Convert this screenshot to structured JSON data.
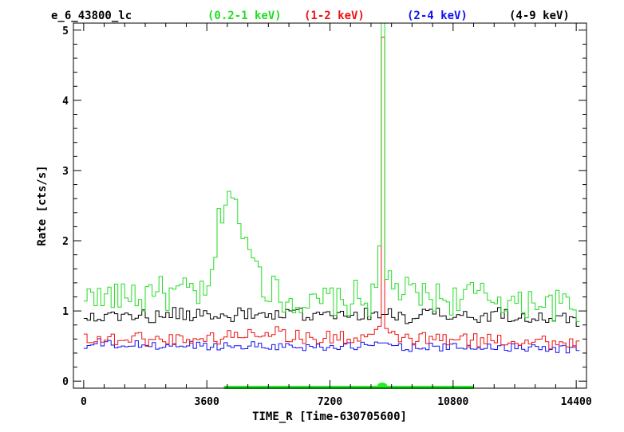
{
  "header": {
    "source": "e_6_43800_lc",
    "bands": [
      {
        "label": "(0.2-1 keV)",
        "color": "#22dd22"
      },
      {
        "label": "(1-2 keV)",
        "color": "#ee1111"
      },
      {
        "label": "(2-4 keV)",
        "color": "#1111ee"
      },
      {
        "label": "(4-9 keV)",
        "color": "#000000"
      }
    ]
  },
  "chart_data": {
    "type": "line",
    "step": true,
    "xlabel": "TIME_R  [Time-630705600]",
    "ylabel": "Rate  [cts/s]",
    "xlim": [
      -300,
      14700
    ],
    "ylim": [
      -0.1,
      5.1
    ],
    "xticks": [
      0,
      3600,
      7200,
      10800,
      14400
    ],
    "xtick_labels": [
      "0",
      "3600",
      "7200",
      "10800",
      "14400"
    ],
    "yticks": [
      0,
      1,
      2,
      3,
      4,
      5
    ],
    "ytick_labels": [
      "0",
      "1",
      "2",
      "3",
      "4",
      "5"
    ],
    "bin_width": 100,
    "flare_spike": {
      "t": 8800,
      "soft_rate": 5.1,
      "medium_rate": 4.9
    },
    "gti": [
      {
        "start": 4100,
        "end": 11400
      }
    ],
    "series": [
      {
        "name": "(0.2-1 keV)",
        "color": "#22dd22",
        "t": [
          0,
          200,
          500,
          800,
          1100,
          1400,
          1700,
          2000,
          2400,
          2800,
          3200,
          3600,
          3800,
          3900,
          4000,
          4100,
          4200,
          4300,
          4400,
          4450,
          4500,
          4600,
          4700,
          4800,
          4900,
          5000,
          5100,
          5200,
          5300,
          5400,
          5500,
          5700,
          6000,
          6400,
          6800,
          7200,
          7600,
          8000,
          8300,
          8500,
          8600,
          8700,
          8750,
          8800,
          8850,
          8900,
          9000,
          9200,
          9500,
          10000,
          10400,
          10800,
          11200,
          11600,
          12000,
          12400,
          12800,
          13200,
          13600,
          14000,
          14400
        ],
        "rate": [
          0.9,
          1.45,
          1.1,
          1.25,
          1.15,
          1.3,
          1.1,
          1.4,
          1.2,
          1.25,
          1.3,
          1.15,
          1.6,
          2.1,
          2.4,
          2.5,
          2.65,
          2.85,
          2.4,
          2.5,
          1.9,
          2.3,
          1.85,
          2.0,
          2.15,
          1.6,
          1.75,
          1.45,
          1.3,
          1.3,
          1.4,
          1.2,
          1.15,
          1.15,
          1.05,
          1.2,
          1.05,
          1.25,
          1.1,
          1.2,
          1.3,
          2.4,
          5.1,
          2.2,
          1.45,
          1.6,
          1.4,
          1.3,
          1.25,
          1.2,
          1.2,
          1.15,
          1.25,
          1.2,
          1.2,
          1.15,
          1.05,
          1.2,
          1.05,
          1.1,
          1.0
        ]
      },
      {
        "name": "(1-2 keV)",
        "color": "#ee1111",
        "t": [
          0,
          400,
          800,
          1200,
          1600,
          2000,
          2400,
          2800,
          3200,
          3600,
          4000,
          4400,
          4800,
          5200,
          5600,
          6000,
          6400,
          6800,
          7200,
          7600,
          8000,
          8400,
          8700,
          8750,
          8800,
          8850,
          8900,
          9200,
          9600,
          10000,
          10400,
          10800,
          11200,
          11600,
          12000,
          12400,
          12800,
          13200,
          13600,
          14000,
          14400
        ],
        "rate": [
          0.65,
          0.6,
          0.6,
          0.6,
          0.62,
          0.58,
          0.6,
          0.6,
          0.62,
          0.6,
          0.62,
          0.65,
          0.68,
          0.7,
          0.72,
          0.65,
          0.62,
          0.6,
          0.62,
          0.62,
          0.6,
          0.65,
          0.7,
          4.9,
          4.9,
          0.75,
          0.65,
          0.62,
          0.6,
          0.6,
          0.6,
          0.58,
          0.58,
          0.58,
          0.6,
          0.58,
          0.58,
          0.6,
          0.55,
          0.55,
          0.55
        ]
      },
      {
        "name": "(2-4 keV)",
        "color": "#1111ee",
        "t": [
          0,
          400,
          800,
          1200,
          1600,
          2000,
          2400,
          2800,
          3200,
          3600,
          4000,
          4400,
          4800,
          5200,
          5600,
          6000,
          6400,
          6800,
          7200,
          7600,
          8000,
          8400,
          8800,
          9200,
          9600,
          10000,
          10400,
          10800,
          11200,
          11600,
          12000,
          12400,
          12800,
          13200,
          13600,
          14000,
          14400
        ],
        "rate": [
          0.45,
          0.55,
          0.52,
          0.5,
          0.52,
          0.5,
          0.5,
          0.5,
          0.52,
          0.5,
          0.5,
          0.5,
          0.52,
          0.5,
          0.5,
          0.5,
          0.48,
          0.5,
          0.5,
          0.48,
          0.5,
          0.5,
          0.55,
          0.5,
          0.48,
          0.5,
          0.48,
          0.48,
          0.48,
          0.48,
          0.5,
          0.48,
          0.48,
          0.5,
          0.48,
          0.46,
          0.45
        ]
      },
      {
        "name": "(4-9 keV)",
        "color": "#000000",
        "t": [
          0,
          400,
          800,
          1200,
          1600,
          2000,
          2400,
          2800,
          3200,
          3600,
          4000,
          4400,
          4800,
          5200,
          5600,
          6000,
          6400,
          6800,
          7200,
          7600,
          8000,
          8400,
          8800,
          9200,
          9600,
          10000,
          10400,
          10800,
          11200,
          11600,
          12000,
          12400,
          12800,
          13200,
          13600,
          14000,
          14400
        ],
        "rate": [
          0.9,
          0.95,
          0.9,
          0.95,
          0.95,
          0.9,
          0.95,
          0.95,
          0.95,
          0.95,
          0.9,
          0.95,
          0.95,
          0.95,
          0.9,
          0.95,
          0.95,
          0.95,
          0.9,
          0.92,
          0.95,
          0.95,
          0.95,
          0.95,
          0.9,
          0.95,
          0.95,
          0.92,
          0.92,
          0.9,
          0.95,
          0.95,
          0.92,
          0.92,
          0.9,
          0.88,
          0.85
        ]
      }
    ]
  }
}
